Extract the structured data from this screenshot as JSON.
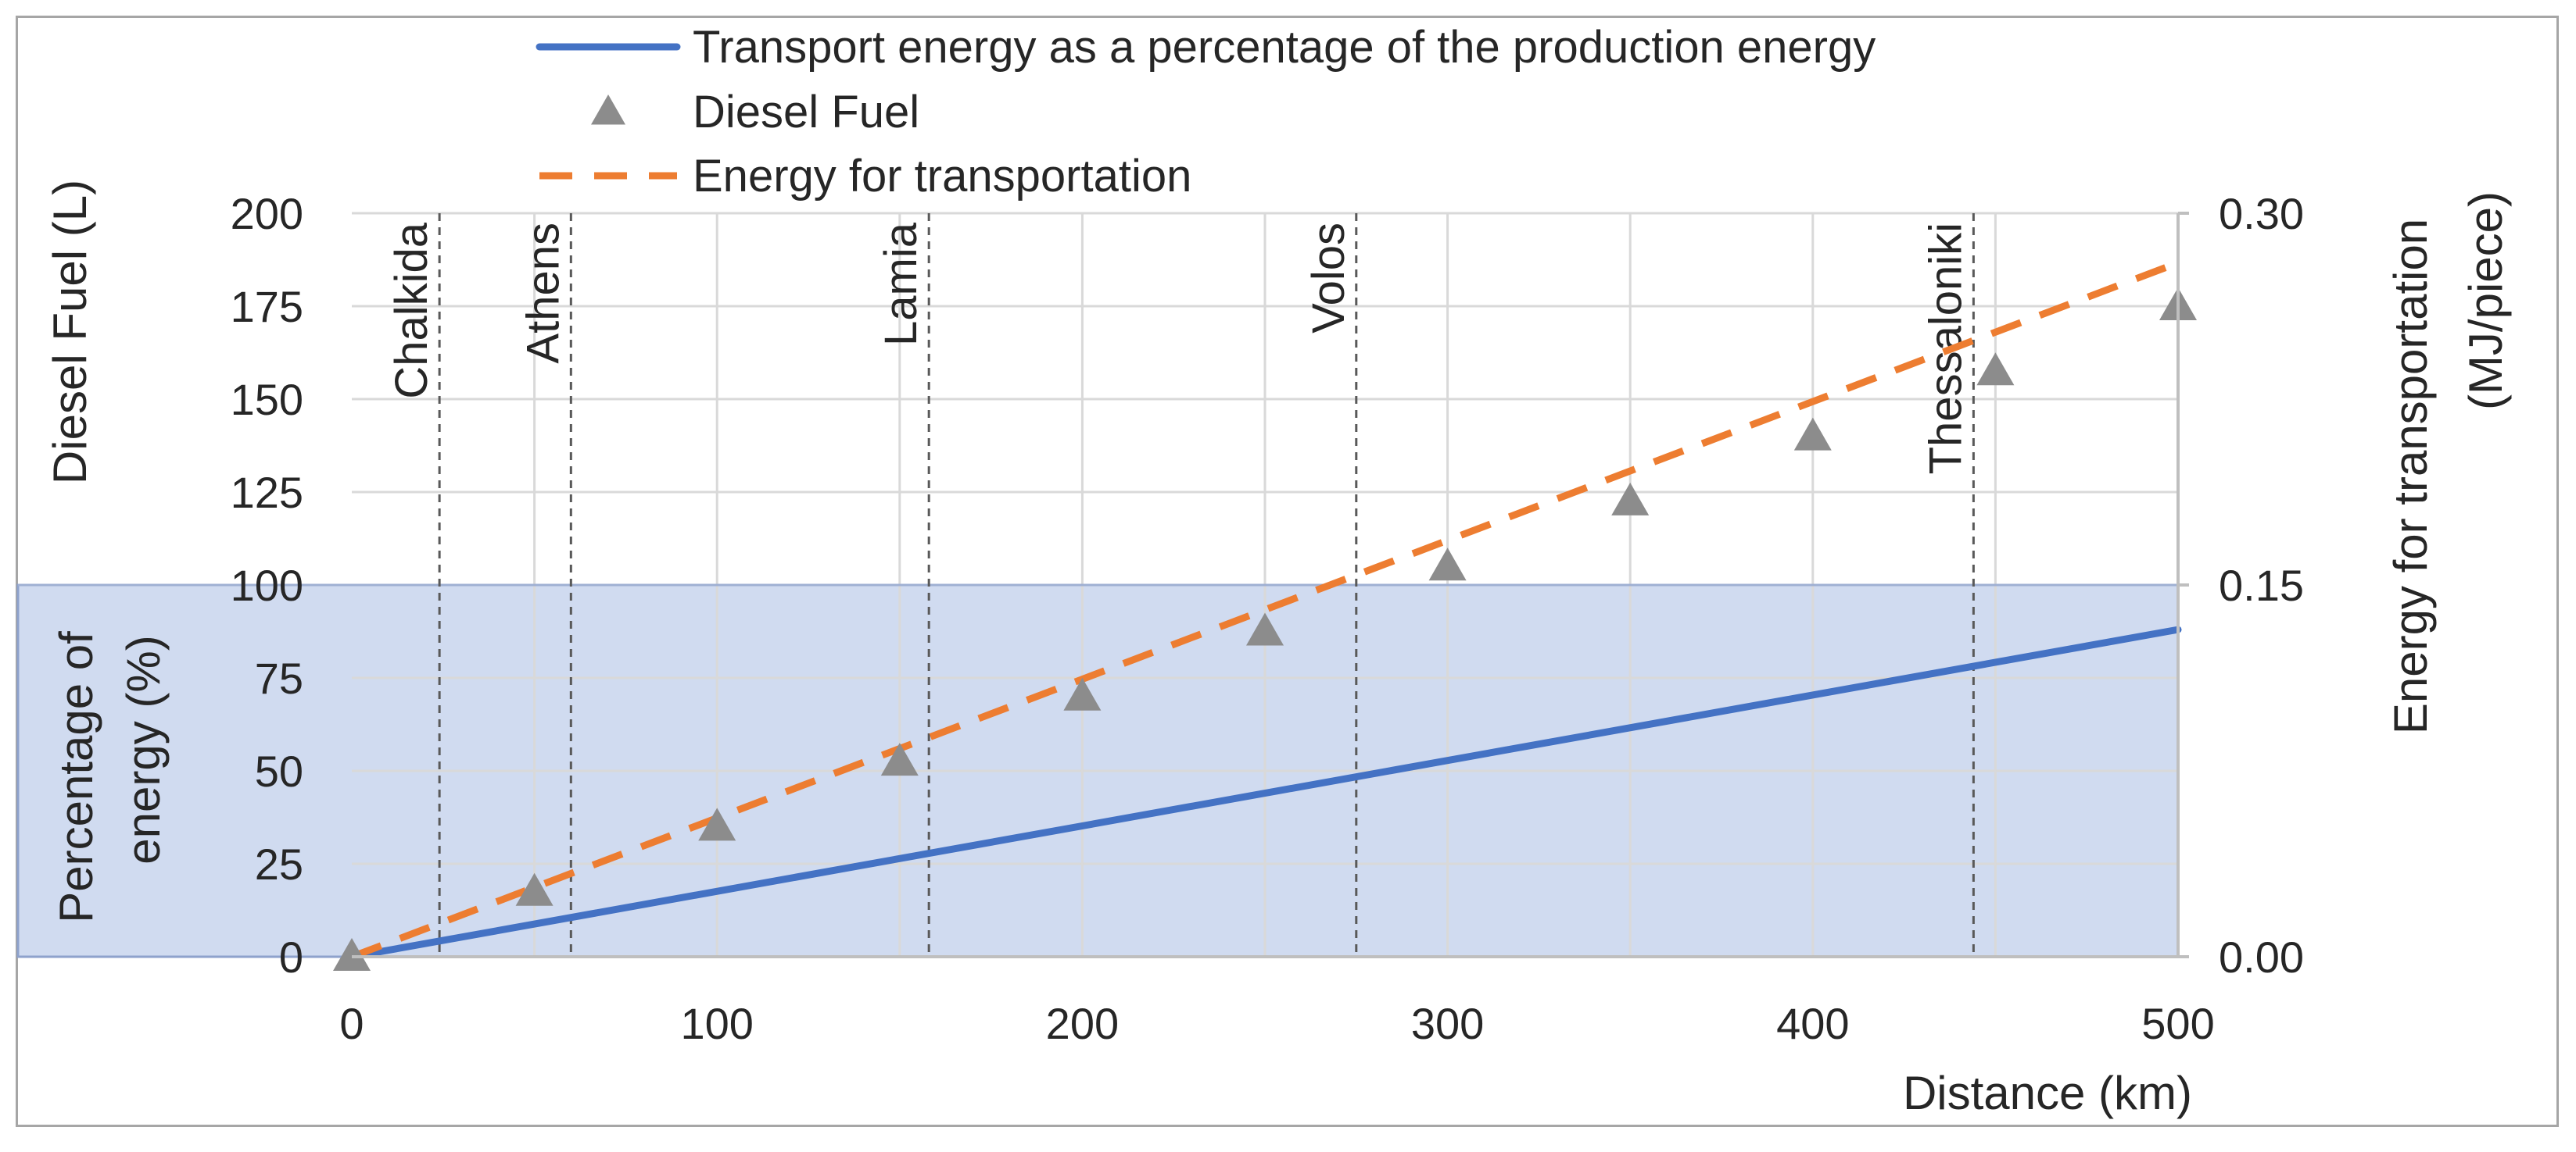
{
  "chart_data": {
    "type": "line",
    "xlabel": "Distance (km)",
    "ylabel_left": "Diesel Fuel (L)",
    "ylabel_left_lower": [
      "Percentage of",
      "energy (%)"
    ],
    "ylabel_right": [
      "Energy for transportation",
      "(MJ/piece)"
    ],
    "xlim": [
      0,
      500
    ],
    "ylim_left": [
      0,
      200
    ],
    "ylim_right": [
      0.0,
      0.3
    ],
    "x_ticks": [
      "0",
      "100",
      "200",
      "300",
      "400",
      "500"
    ],
    "x_tick_values": [
      0,
      100,
      200,
      300,
      400,
      500
    ],
    "y_left_ticks": [
      "0",
      "25",
      "50",
      "75",
      "100",
      "125",
      "150",
      "175",
      "200"
    ],
    "y_left_tick_values": [
      0,
      25,
      50,
      75,
      100,
      125,
      150,
      175,
      200
    ],
    "y_right_ticks": [
      "0.00",
      "0.15",
      "0.30"
    ],
    "y_right_tick_values": [
      0.0,
      0.15,
      0.3
    ],
    "grid": true,
    "shaded_region": {
      "y_from": 0,
      "y_to": 100,
      "axis": "left",
      "color": "#d0dbf0"
    },
    "legend": {
      "placement": "top",
      "entries": [
        {
          "label": "Transport energy as a percentage of the production energy",
          "style": "solid-line",
          "color": "#4472c4"
        },
        {
          "label": "Diesel Fuel",
          "style": "triangle-marker",
          "color": "#8c8c8c"
        },
        {
          "label": "Energy for transportation",
          "style": "dashed-line",
          "color": "#ed7d31"
        }
      ]
    },
    "series": [
      {
        "name": "Transport energy as a percentage of the production energy",
        "axis": "left",
        "type": "line",
        "x": [
          0,
          500
        ],
        "y": [
          0,
          88
        ],
        "color": "#4472c4"
      },
      {
        "name": "Diesel Fuel",
        "axis": "left",
        "type": "scatter",
        "x": [
          0,
          50,
          100,
          150,
          200,
          250,
          300,
          350,
          400,
          450,
          500
        ],
        "y": [
          0,
          17.5,
          35,
          52.5,
          70,
          87.5,
          105,
          122.5,
          140,
          157.5,
          175
        ],
        "color": "#8c8c8c"
      },
      {
        "name": "Energy for transportation",
        "axis": "right",
        "type": "dashed-line",
        "x": [
          0,
          500
        ],
        "y": [
          0.0,
          0.28
        ],
        "color": "#ed7d31"
      }
    ],
    "annotations": [
      {
        "label": "Chalkida",
        "x": 24
      },
      {
        "label": "Athens",
        "x": 60
      },
      {
        "label": "Lamia",
        "x": 158
      },
      {
        "label": "Volos",
        "x": 275
      },
      {
        "label": "Thessaloniki",
        "x": 444
      }
    ]
  }
}
